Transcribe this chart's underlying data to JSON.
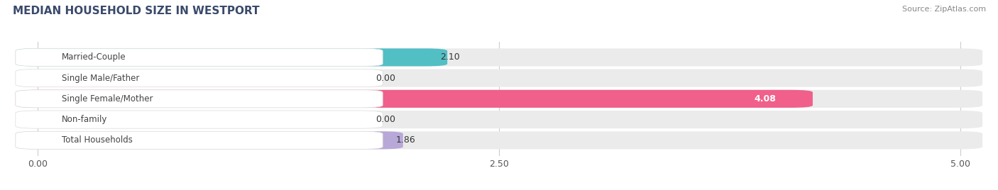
{
  "title": "MEDIAN HOUSEHOLD SIZE IN WESTPORT",
  "source": "Source: ZipAtlas.com",
  "categories": [
    "Married-Couple",
    "Single Male/Father",
    "Single Female/Mother",
    "Non-family",
    "Total Households"
  ],
  "values": [
    2.1,
    0.0,
    4.08,
    0.0,
    1.86
  ],
  "bar_colors": [
    "#52bfc5",
    "#aabde8",
    "#f0608a",
    "#f5c89a",
    "#b8a8d8"
  ],
  "bar_bg_color": "#ebebeb",
  "value_inside_color": [
    "#333333",
    "#333333",
    "#ffffff",
    "#333333",
    "#333333"
  ],
  "xlim_max": 5.0,
  "xticks": [
    0.0,
    2.5,
    5.0
  ],
  "xtick_labels": [
    "0.00",
    "2.50",
    "5.00"
  ],
  "value_fontsize": 9,
  "label_fontsize": 8.5,
  "title_fontsize": 11,
  "source_fontsize": 8,
  "title_color": "#3a4a6b",
  "source_color": "#888888"
}
